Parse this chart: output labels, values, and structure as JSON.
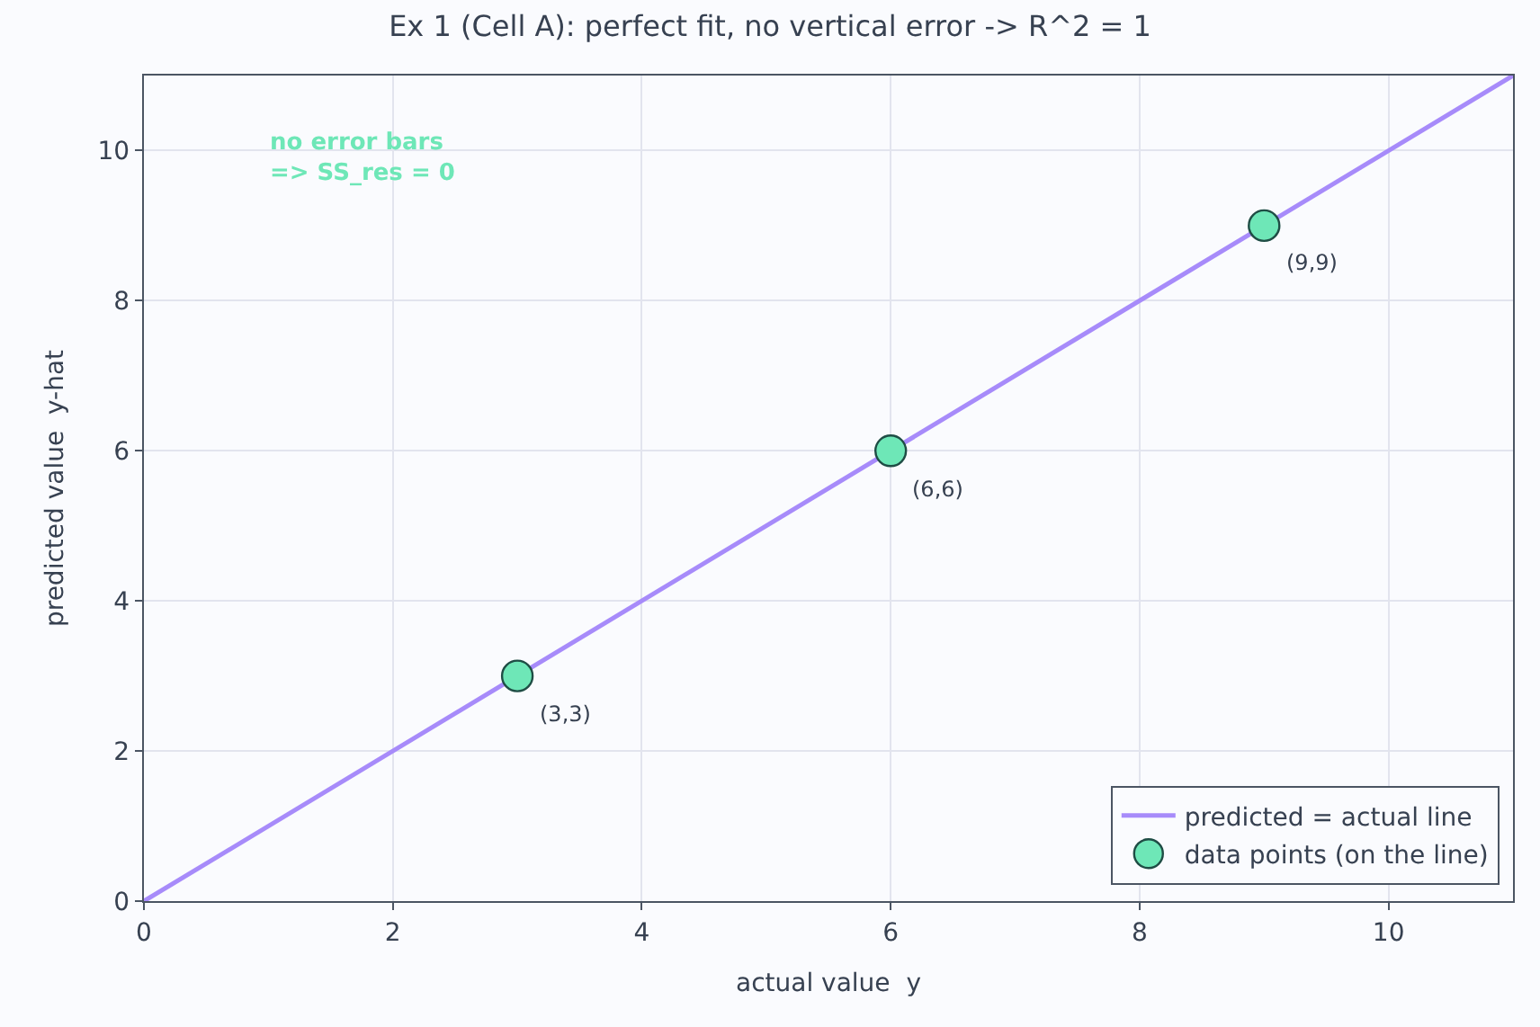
{
  "chart_data": {
    "type": "scatter",
    "title": "Ex 1 (Cell A): perfect fit, no vertical error -> R^2 = 1",
    "xlabel": "actual value  y",
    "ylabel": "predicted value  y-hat",
    "series": [
      {
        "name": "predicted = actual line",
        "type": "line",
        "color": "#a78bfa",
        "x": [
          0,
          11
        ],
        "values": [
          0,
          11
        ],
        "marker": "none",
        "line_style": "solid"
      },
      {
        "name": "data points (on the line)",
        "color": "#6ee7b7",
        "x": [
          3,
          6,
          9
        ],
        "values": [
          3,
          6,
          9
        ],
        "marker": "circle"
      }
    ],
    "annotations": [
      "no error bars\n=> SS_res = 0",
      {
        "text": "(3,3)",
        "x": 3,
        "y": 3
      },
      {
        "text": "(6,6)",
        "x": 6,
        "y": 6
      },
      {
        "text": "(9,9)",
        "x": 9,
        "y": 9
      }
    ],
    "xlim": [
      0,
      11
    ],
    "ylim": [
      0,
      11
    ],
    "xticks": [
      0,
      2,
      4,
      6,
      8,
      10
    ],
    "yticks": [
      0,
      2,
      4,
      6,
      8,
      10
    ],
    "grid": true,
    "legend": "bottom right"
  }
}
